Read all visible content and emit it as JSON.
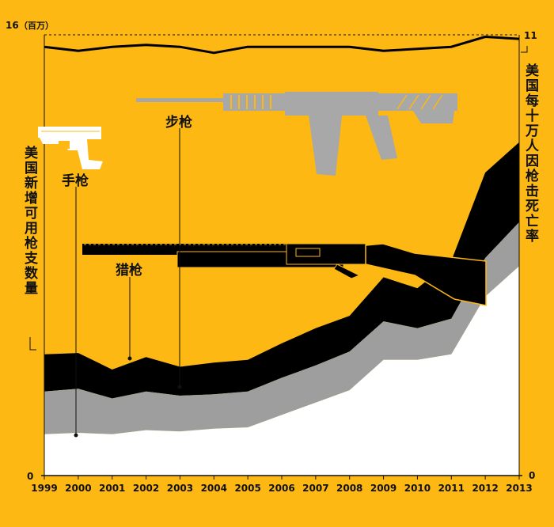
{
  "chart_data": {
    "type": "area",
    "x": [
      1999,
      2000,
      2001,
      2002,
      2003,
      2004,
      2005,
      2006,
      2007,
      2008,
      2009,
      2010,
      2011,
      2012,
      2013
    ],
    "x_tick_labels": [
      "1999",
      "2000",
      "2001",
      "2002",
      "2003",
      "2004",
      "2005",
      "2006",
      "2007",
      "2008",
      "2009",
      "2010",
      "2011",
      "2012",
      "2013"
    ],
    "stack_order": [
      "handguns",
      "shotguns",
      "rifles"
    ],
    "series": [
      {
        "key": "handguns",
        "name": "手枪",
        "color": "#FFFFFF",
        "values": [
          1.5,
          1.55,
          1.5,
          1.65,
          1.6,
          1.7,
          1.75,
          2.2,
          2.65,
          3.1,
          4.2,
          4.2,
          4.4,
          6.5,
          7.6
        ]
      },
      {
        "key": "shotguns",
        "name": "猎枪",
        "color": "#9E9E9E",
        "values": [
          1.55,
          1.6,
          1.3,
          1.4,
          1.3,
          1.25,
          1.3,
          1.35,
          1.35,
          1.4,
          1.4,
          1.15,
          1.3,
          1.4,
          1.6
        ]
      },
      {
        "key": "rifles",
        "name": "步枪",
        "color": "#000000",
        "values": [
          1.35,
          1.3,
          1.05,
          1.25,
          1.05,
          1.15,
          1.15,
          1.25,
          1.35,
          1.3,
          1.6,
          1.45,
          2.1,
          3.1,
          2.9
        ]
      }
    ],
    "overlay_line": {
      "values": [
        10.7,
        10.6,
        10.7,
        10.75,
        10.7,
        10.55,
        10.7,
        10.7,
        10.7,
        10.7,
        10.6,
        10.65,
        10.7,
        10.95,
        10.9
      ]
    },
    "left_axis": {
      "label": "美国新增可用枪支数量",
      "unit": "（百万）",
      "min_label": "0",
      "max_label": "16",
      "ylim": [
        0,
        16
      ]
    },
    "right_axis": {
      "label": "美国每十万人因枪击死亡率",
      "min_label": "0",
      "max_label": "11",
      "ylim": [
        0,
        11
      ]
    },
    "grid": false,
    "reference_line_at_top": true
  }
}
